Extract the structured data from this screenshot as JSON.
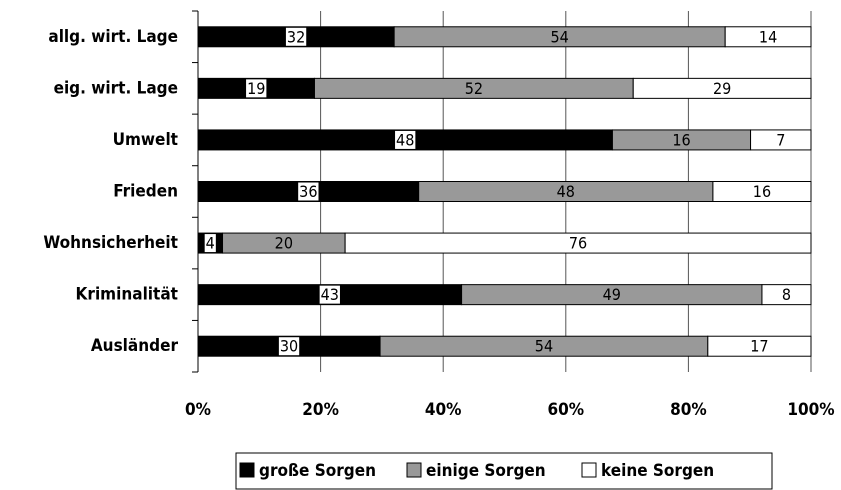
{
  "chart_data": {
    "type": "bar",
    "orientation": "horizontal",
    "stacking": "percent",
    "categories": [
      "allg. wirt. Lage",
      "eig. wirt. Lage",
      "Umwelt",
      "Frieden",
      "Wohnsicherheit",
      "Kriminalität",
      "Ausländer"
    ],
    "series": [
      {
        "name": "große Sorgen",
        "color": "#000000",
        "values": [
          32,
          19,
          48,
          36,
          4,
          43,
          30
        ]
      },
      {
        "name": "einige Sorgen",
        "color": "#999999",
        "values": [
          54,
          52,
          16,
          48,
          20,
          49,
          54
        ]
      },
      {
        "name": "keine Sorgen",
        "color": "#ffffff",
        "values": [
          14,
          29,
          7,
          16,
          76,
          8,
          17
        ]
      }
    ],
    "xlim": [
      0,
      100
    ],
    "xticks": [
      {
        "value": 0,
        "label": "0%"
      },
      {
        "value": 20,
        "label": "20%"
      },
      {
        "value": 40,
        "label": "40%"
      },
      {
        "value": 60,
        "label": "60%"
      },
      {
        "value": 80,
        "label": "80%"
      },
      {
        "value": 100,
        "label": "100%"
      }
    ],
    "grid": true,
    "legend": "bottom"
  }
}
